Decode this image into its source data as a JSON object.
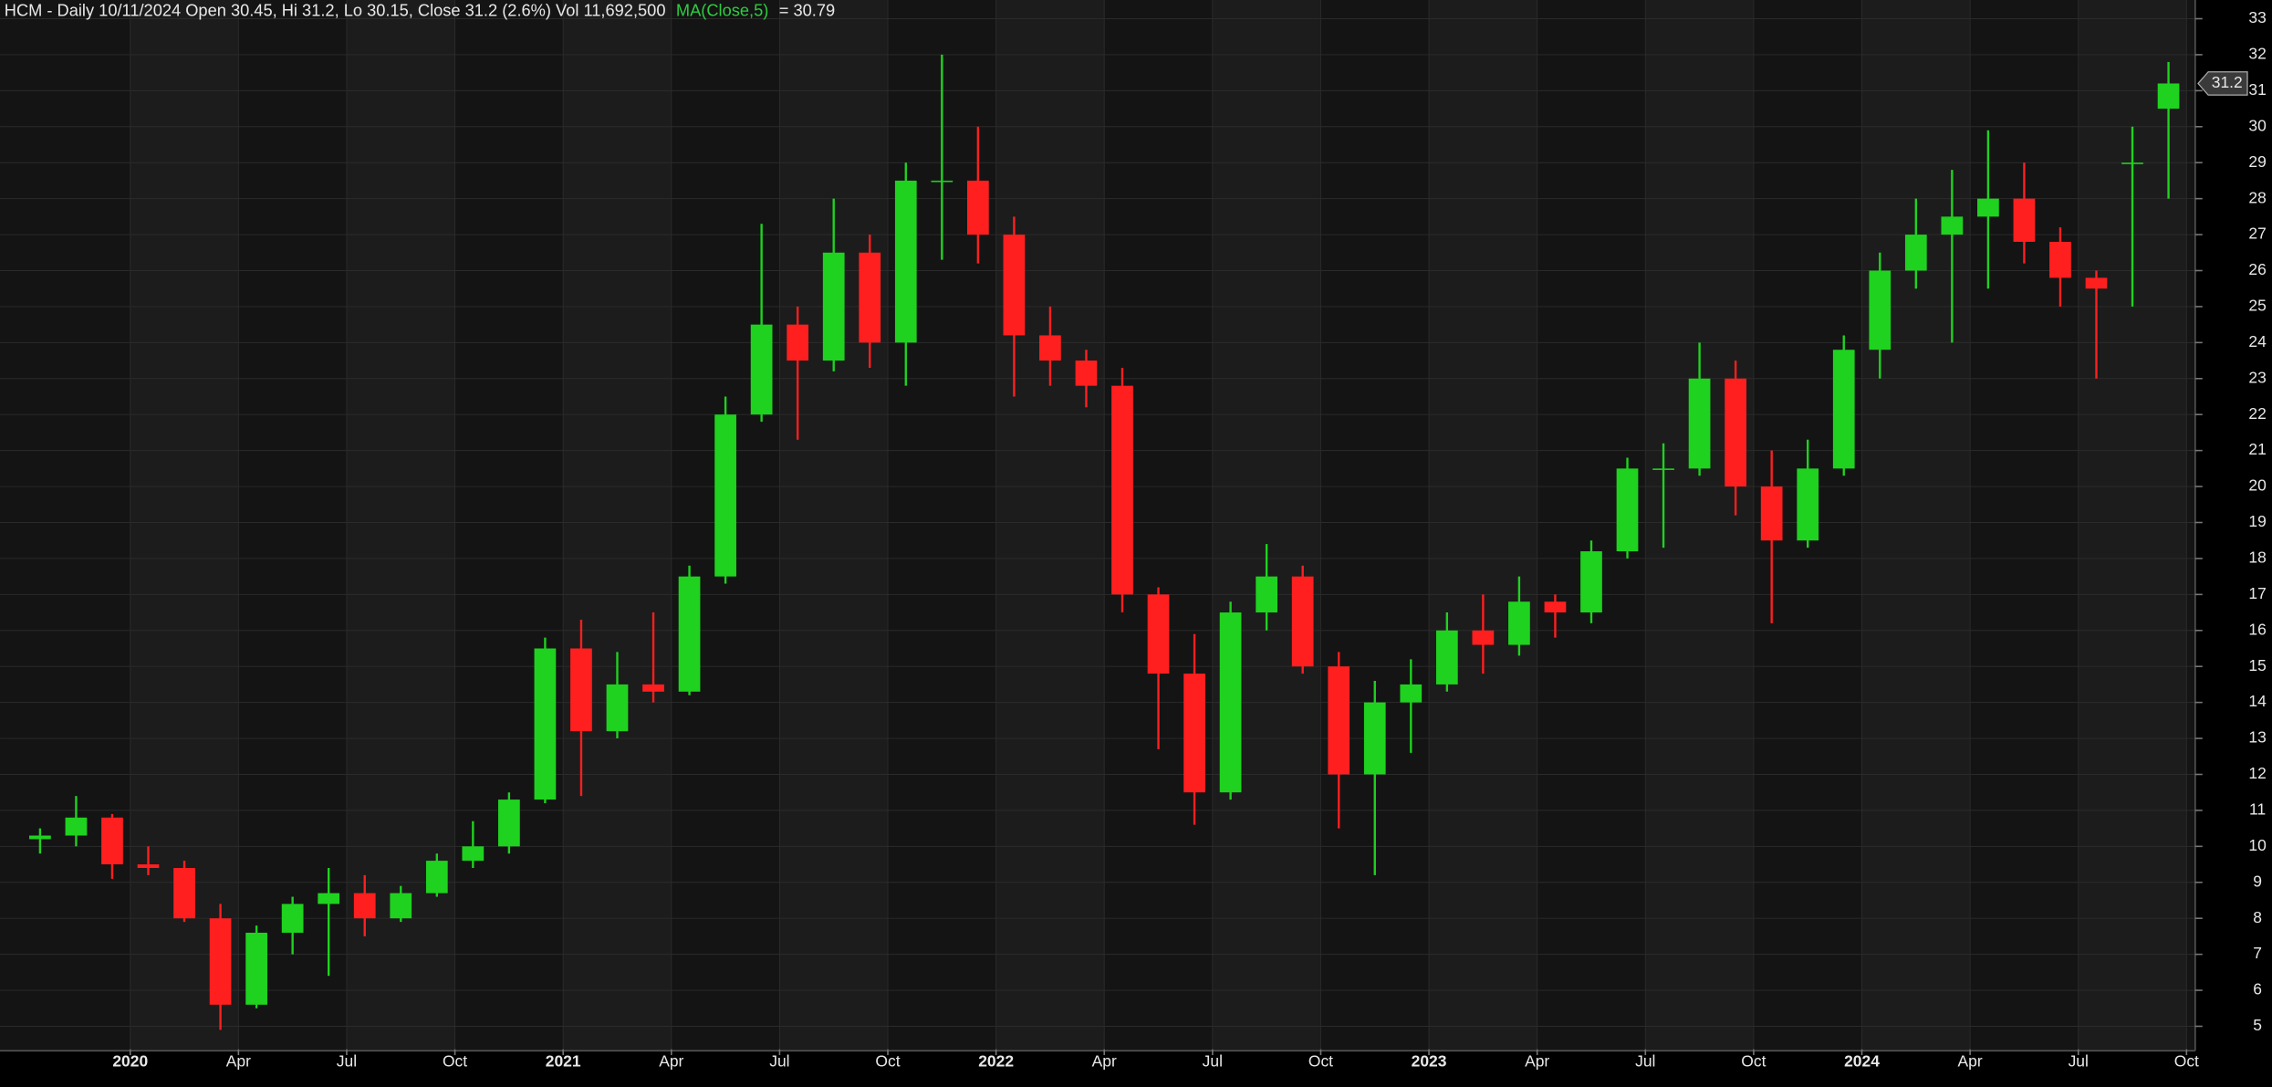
{
  "chart_data": {
    "type": "candlestick",
    "header": "HCM - Daily 10/11/2024 Open 30.45, Hi 31.2, Lo 30.15, Close 31.2 (2.6%) Vol 11,692,500",
    "ma_label": "MA(Close,5)",
    "ma_value_text": "= 30.79",
    "last_price": 31.2,
    "up_color": "#1fd21f",
    "down_color": "#ff1f1f",
    "ma_color": "#2ecc40",
    "ylim": [
      4.36,
      33.52
    ],
    "yticks": [
      5,
      6,
      7,
      8,
      9,
      10,
      11,
      12,
      13,
      14,
      15,
      16,
      17,
      18,
      19,
      20,
      21,
      22,
      23,
      24,
      25,
      26,
      27,
      28,
      29,
      30,
      31,
      32,
      33
    ],
    "xlim": [
      -3.61,
      57.24
    ],
    "xticks": [
      {
        "value": 0,
        "label": "2020"
      },
      {
        "value": 3,
        "label": "Apr"
      },
      {
        "value": 6,
        "label": "Jul"
      },
      {
        "value": 9,
        "label": "Oct"
      },
      {
        "value": 12,
        "label": "2021"
      },
      {
        "value": 15,
        "label": "Apr"
      },
      {
        "value": 18,
        "label": "Jul"
      },
      {
        "value": 21,
        "label": "Oct"
      },
      {
        "value": 24,
        "label": "2022"
      },
      {
        "value": 27,
        "label": "Apr"
      },
      {
        "value": 30,
        "label": "Jul"
      },
      {
        "value": 33,
        "label": "Oct"
      },
      {
        "value": 36,
        "label": "2023"
      },
      {
        "value": 39,
        "label": "Apr"
      },
      {
        "value": 42,
        "label": "Jul"
      },
      {
        "value": 45,
        "label": "Oct"
      },
      {
        "value": 48,
        "label": "2024"
      },
      {
        "value": 51,
        "label": "Apr"
      },
      {
        "value": 54,
        "label": "Jul"
      },
      {
        "value": 57,
        "label": "Oct"
      }
    ],
    "candles": {
      "x": [
        -2.5,
        -1.5,
        -0.5,
        0.5,
        1.5,
        2.5,
        3.5,
        4.5,
        5.5,
        6.5,
        7.5,
        8.5,
        9.5,
        10.5,
        11.5,
        12.5,
        13.5,
        14.5,
        15.5,
        16.5,
        17.5,
        18.5,
        19.5,
        20.5,
        21.5,
        22.5,
        23.5,
        24.5,
        25.5,
        26.5,
        27.5,
        28.5,
        29.5,
        30.5,
        31.5,
        32.5,
        33.5,
        34.5,
        35.5,
        36.5,
        37.5,
        38.5,
        39.5,
        40.5,
        41.5,
        42.5,
        43.5,
        44.5,
        45.5,
        46.5,
        47.5,
        48.5,
        49.5,
        50.5,
        51.5,
        52.5,
        53.5,
        54.5,
        55.5,
        56.5
      ],
      "open": [
        10.2,
        10.3,
        10.8,
        9.5,
        9.4,
        8.0,
        5.6,
        7.6,
        8.4,
        8.7,
        8.0,
        8.7,
        9.6,
        10.0,
        11.3,
        15.5,
        13.2,
        14.5,
        14.3,
        17.5,
        22.0,
        24.5,
        23.5,
        26.5,
        24.0,
        28.5,
        28.5,
        27.0,
        24.2,
        23.5,
        22.8,
        17.0,
        14.8,
        11.5,
        16.5,
        17.5,
        15.0,
        12.0,
        14.0,
        14.5,
        16.0,
        15.6,
        16.8,
        16.5,
        18.2,
        20.5,
        20.5,
        23.0,
        20.0,
        18.5,
        20.5,
        23.8,
        26.0,
        27.0,
        27.5,
        28.0,
        26.8,
        25.8,
        29.0,
        30.5
      ],
      "high": [
        10.5,
        11.4,
        10.9,
        10.0,
        9.6,
        8.4,
        7.8,
        8.6,
        9.4,
        9.2,
        8.9,
        9.8,
        10.7,
        11.5,
        15.8,
        16.3,
        15.4,
        16.5,
        17.8,
        22.5,
        27.3,
        25.0,
        28.0,
        27.0,
        29.0,
        32.0,
        30.0,
        27.5,
        25.0,
        23.8,
        23.3,
        17.2,
        15.9,
        16.8,
        18.4,
        17.8,
        15.4,
        14.6,
        15.2,
        16.5,
        17.0,
        17.5,
        17.0,
        18.5,
        20.8,
        21.2,
        24.0,
        23.5,
        21.0,
        21.3,
        24.2,
        26.5,
        28.0,
        28.8,
        29.9,
        29.0,
        27.2,
        26.0,
        30.0,
        31.8
      ],
      "low": [
        9.8,
        10.0,
        9.1,
        9.2,
        7.9,
        4.9,
        5.5,
        7.0,
        6.4,
        7.5,
        7.9,
        8.6,
        9.4,
        9.8,
        11.2,
        11.4,
        13.0,
        14.0,
        14.2,
        17.3,
        21.8,
        21.3,
        23.2,
        23.3,
        22.8,
        26.3,
        26.2,
        22.5,
        22.8,
        22.2,
        16.5,
        12.7,
        10.6,
        11.3,
        16.0,
        14.8,
        10.5,
        9.2,
        12.6,
        14.3,
        14.8,
        15.3,
        15.8,
        16.2,
        18.0,
        18.3,
        20.3,
        19.2,
        16.2,
        18.3,
        20.3,
        23.0,
        25.5,
        24.0,
        25.5,
        26.2,
        25.0,
        23.0,
        25.0,
        28.0
      ],
      "close": [
        10.3,
        10.8,
        9.5,
        9.4,
        8.0,
        5.6,
        7.6,
        8.4,
        8.7,
        8.0,
        8.7,
        9.6,
        10.0,
        11.3,
        15.5,
        13.2,
        14.5,
        14.3,
        17.5,
        22.0,
        24.5,
        23.5,
        26.5,
        24.0,
        28.5,
        28.5,
        27.0,
        24.2,
        23.5,
        22.8,
        17.0,
        14.8,
        11.5,
        16.5,
        17.5,
        15.0,
        12.0,
        14.0,
        14.5,
        16.0,
        15.6,
        16.8,
        16.5,
        18.2,
        20.5,
        20.5,
        23.0,
        20.0,
        18.5,
        20.5,
        23.8,
        26.0,
        27.0,
        27.5,
        28.0,
        26.8,
        25.8,
        25.5,
        29.0,
        31.2
      ]
    }
  }
}
